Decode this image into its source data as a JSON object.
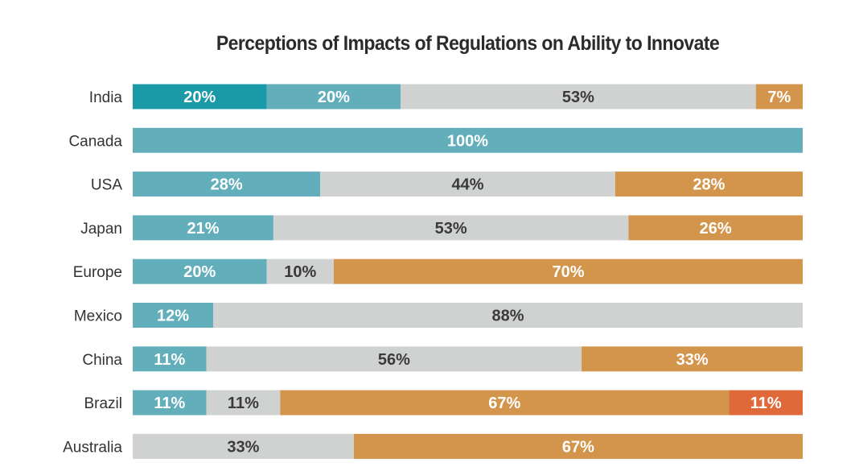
{
  "chart_data": {
    "type": "bar",
    "orientation": "horizontal",
    "stacked": true,
    "title": "Perceptions of Impacts of Regulations on Ability to Innovate",
    "categories": [
      "India",
      "Canada",
      "USA",
      "Japan",
      "Europe",
      "Mexico",
      "China",
      "Brazil",
      "Australia"
    ],
    "series": [
      {
        "color": "#1a9aa6",
        "label_color": "#ffffff",
        "values": [
          20,
          0,
          0,
          0,
          0,
          0,
          0,
          0,
          0
        ]
      },
      {
        "color": "#62aebb",
        "label_color": "#ffffff",
        "values": [
          20,
          100,
          28,
          21,
          20,
          12,
          11,
          11,
          0
        ]
      },
      {
        "color": "#d0d2d2",
        "label_color": "#3a3a3a",
        "values": [
          53,
          0,
          44,
          53,
          10,
          88,
          56,
          11,
          33
        ]
      },
      {
        "color": "#d3954c",
        "label_color": "#ffffff",
        "values": [
          7,
          0,
          28,
          26,
          70,
          0,
          33,
          67,
          67
        ]
      },
      {
        "color": "#e0693a",
        "label_color": "#ffffff",
        "values": [
          0,
          0,
          0,
          0,
          0,
          0,
          0,
          11,
          0
        ]
      }
    ],
    "value_suffix": "%",
    "xlim": [
      0,
      100
    ],
    "legend": "none",
    "grid": false
  }
}
